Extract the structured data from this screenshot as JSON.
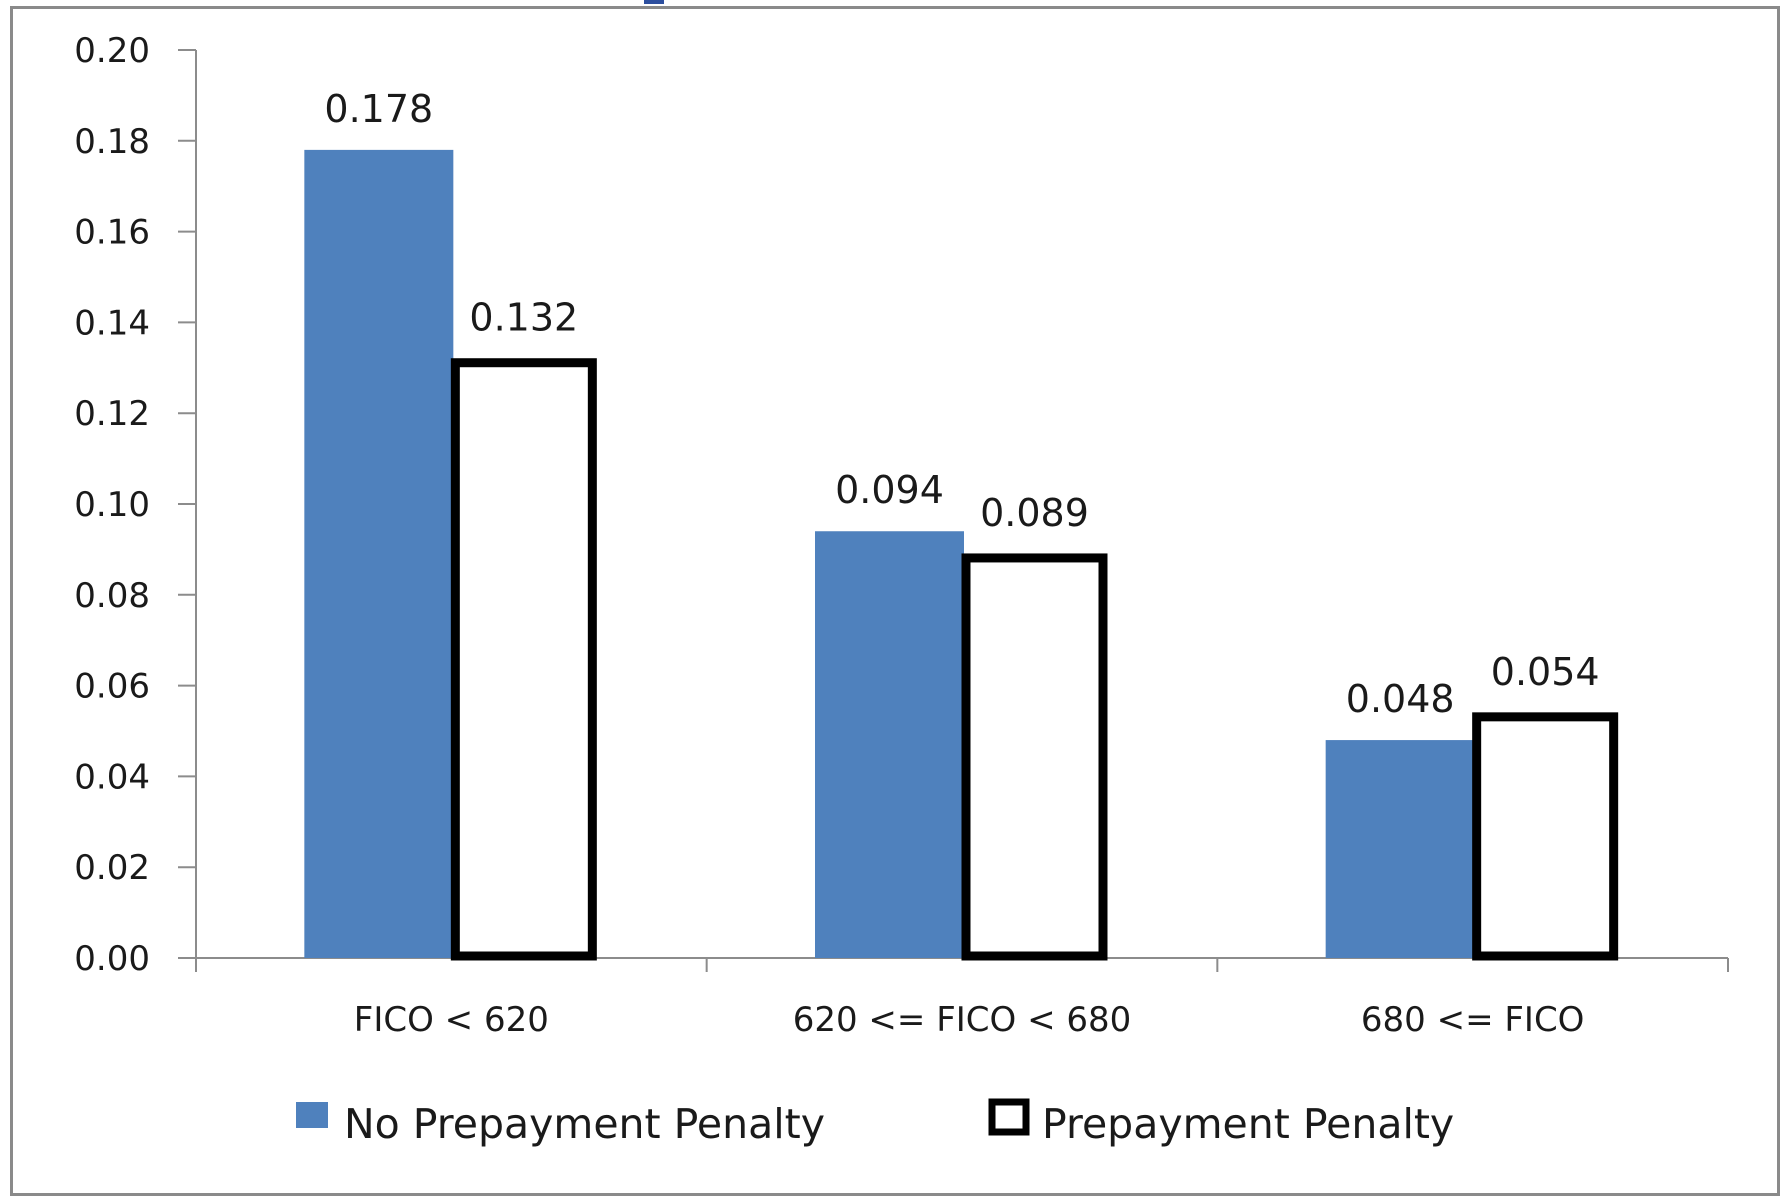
{
  "chart_data": {
    "type": "bar",
    "title": "",
    "xlabel": "",
    "ylabel": "",
    "categories": [
      "FICO < 620",
      "620 <= FICO < 680",
      "680 <= FICO"
    ],
    "series": [
      {
        "name": "No Prepayment Penalty",
        "values": [
          0.178,
          0.094,
          0.048
        ],
        "labels": [
          "0.178",
          "0.094",
          "0.048"
        ],
        "color": "#4f81bd",
        "style": "filled"
      },
      {
        "name": "Prepayment Penalty",
        "values": [
          0.132,
          0.089,
          0.054
        ],
        "labels": [
          "0.132",
          "0.089",
          "0.054"
        ],
        "color": "#000000",
        "style": "outline"
      }
    ],
    "ylim": [
      0,
      0.2
    ],
    "yticks": [
      "0.00",
      "0.02",
      "0.04",
      "0.06",
      "0.08",
      "0.10",
      "0.12",
      "0.14",
      "0.16",
      "0.18",
      "0.20"
    ],
    "grid": false,
    "legend_position": "bottom"
  }
}
